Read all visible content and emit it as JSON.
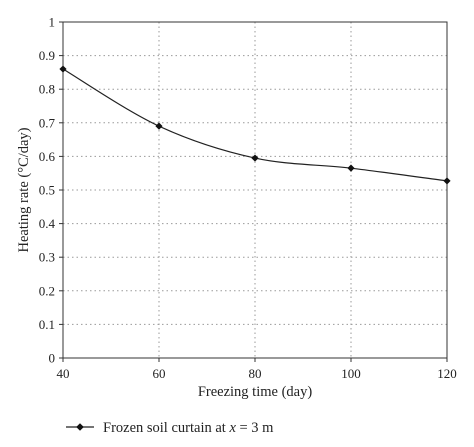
{
  "chart_data": {
    "type": "line",
    "xlabel": "Freezing time (day)",
    "ylabel": "Heating rate (°C/day)",
    "xlim": [
      40,
      120
    ],
    "ylim": [
      0,
      1
    ],
    "x_ticks": [
      "40",
      "60",
      "80",
      "100",
      "120"
    ],
    "y_ticks": [
      "0",
      "0.1",
      "0.2",
      "0.3",
      "0.4",
      "0.5",
      "0.6",
      "0.7",
      "0.8",
      "0.9",
      "1"
    ],
    "grid": true,
    "legend_position": "bottom",
    "series": [
      {
        "name": "Frozen soil curtain at x = 3 m",
        "x": [
          40,
          60,
          80,
          100,
          120
        ],
        "y": [
          0.86,
          0.69,
          0.595,
          0.565,
          0.527
        ],
        "color": "#222222",
        "marker": "diamond"
      }
    ]
  },
  "legend": {
    "label_prefix": "Frozen soil curtain at ",
    "label_var": "x",
    "label_suffix": " = 3 m"
  }
}
